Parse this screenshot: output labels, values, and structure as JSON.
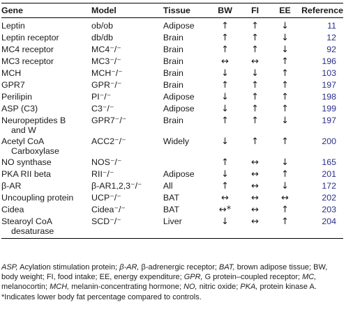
{
  "headers": {
    "gene": "Gene",
    "model": "Model",
    "tissue": "Tissue",
    "bw": "BW",
    "fi": "FI",
    "ee": "EE",
    "reference": "Reference"
  },
  "rows": [
    {
      "gene": "Leptin",
      "gene2": "",
      "model": "ob/ob",
      "tissue": "Adipose",
      "bw": "↑",
      "fi": "↑",
      "ee": "↓",
      "ref": "11"
    },
    {
      "gene": "Leptin receptor",
      "gene2": "",
      "model": "db/db",
      "tissue": "Brain",
      "bw": "↑",
      "fi": "↑",
      "ee": "↓",
      "ref": "12"
    },
    {
      "gene": "MC4 receptor",
      "gene2": "",
      "model": "MC4⁻/⁻",
      "tissue": "Brain",
      "bw": "↑",
      "fi": "↑",
      "ee": "↓",
      "ref": "92"
    },
    {
      "gene": "MC3 receptor",
      "gene2": "",
      "model": "MC3⁻/⁻",
      "tissue": "Brain",
      "bw": "↔",
      "fi": "↔",
      "ee": "↑",
      "ref": "196"
    },
    {
      "gene": "MCH",
      "gene2": "",
      "model": "MCH⁻/⁻",
      "tissue": "Brain",
      "bw": "↓",
      "fi": "↓",
      "ee": "↑",
      "ref": "103"
    },
    {
      "gene": "GPR7",
      "gene2": "",
      "model": "GPR⁻/⁻",
      "tissue": "Brain",
      "bw": "↑",
      "fi": "↑",
      "ee": "↑",
      "ref": "197"
    },
    {
      "gene": "Perilipin",
      "gene2": "",
      "model": "PI⁻/⁻",
      "tissue": "Adipose",
      "bw": "↓",
      "fi": "↑",
      "ee": "↑",
      "ref": "198"
    },
    {
      "gene": "ASP (C3)",
      "gene2": "",
      "model": "C3⁻/⁻",
      "tissue": "Adipose",
      "bw": "↓",
      "fi": "↑",
      "ee": "↑",
      "ref": "199"
    },
    {
      "gene": "Neuropeptides B",
      "gene2": "and W",
      "model": "GPR7⁻/⁻",
      "tissue": "Brain",
      "bw": "↑",
      "fi": "↑",
      "ee": "↓",
      "ref": "197"
    },
    {
      "gene": "Acetyl CoA",
      "gene2": "Carboxylase",
      "model": "ACC2⁻/⁻",
      "tissue": "Widely",
      "bw": "↓",
      "fi": "↑",
      "ee": "↑",
      "ref": "200"
    },
    {
      "gene": "NO synthase",
      "gene2": "",
      "model": "NOS⁻/⁻",
      "tissue": "",
      "bw": "↑",
      "fi": "↔",
      "ee": "↓",
      "ref": "165"
    },
    {
      "gene": "PKA RII beta",
      "gene2": "",
      "model": "RII⁻/⁻",
      "tissue": "Adipose",
      "bw": "↓",
      "fi": "↔",
      "ee": "↑",
      "ref": "201"
    },
    {
      "gene": "β-AR",
      "gene2": "",
      "model": "β-AR1,2,3⁻/⁻",
      "tissue": "All",
      "bw": "↑",
      "fi": "↔",
      "ee": "↓",
      "ref": "172"
    },
    {
      "gene": "Uncoupling protein",
      "gene2": "",
      "model": "UCP⁻/⁻",
      "tissue": "BAT",
      "bw": "↔",
      "fi": "↔",
      "ee": "↔",
      "ref": "202"
    },
    {
      "gene": "Cidea",
      "gene2": "",
      "model": "Cidea⁻/⁻",
      "tissue": "BAT",
      "bw": "↔*",
      "fi": "↔",
      "ee": "↑",
      "ref": "203"
    },
    {
      "gene": "Stearoyl CoA",
      "gene2": "desaturase",
      "model": "SCD⁻/⁻",
      "tissue": "Liver",
      "bw": "↓",
      "fi": "↔",
      "ee": "↑",
      "ref": "204"
    }
  ],
  "footnote": {
    "abbreviations": [
      {
        "term": "ASP,",
        "def": " Acylation stimulation protein; "
      },
      {
        "term": "β-AR,",
        "def": " β-adrenergic receptor; "
      },
      {
        "term": "BAT,",
        "def": " brown adipose tissue; BW, body weight; FI, food intake; EE, energy expenditure; "
      },
      {
        "term": "GPR,",
        "def": " G protein–coupled receptor; "
      },
      {
        "term": "MC,",
        "def": " melanocortin; "
      },
      {
        "term": "MCH,",
        "def": " melanin-concentrating hormone; "
      },
      {
        "term": "NO,",
        "def": " nitric oxide; "
      },
      {
        "term": "PKA,",
        "def": " protein kinase A."
      }
    ],
    "asterisk": "*Indicates lower body fat percentage compared to controls."
  }
}
